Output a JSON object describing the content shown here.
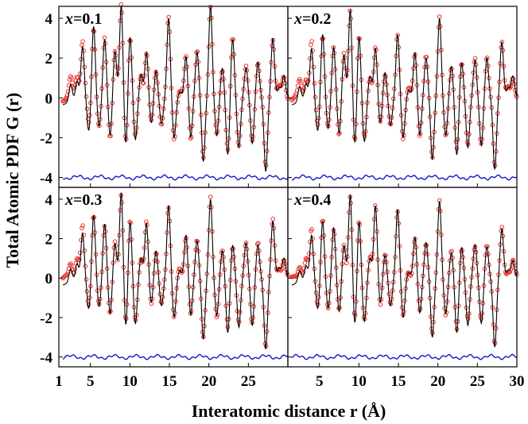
{
  "chart_data": {
    "type": "line",
    "xlabel": "Interatomic distance r (Å)",
    "ylabel": "Total Atomic PDF G (r)",
    "xlim": [
      1,
      30
    ],
    "ylim": [
      -4.5,
      4.6
    ],
    "x_ticks_left": [
      "1",
      "5",
      "10",
      "15",
      "20",
      "25"
    ],
    "x_ticks_right": [
      "5",
      "10",
      "15",
      "20",
      "25",
      "30"
    ],
    "y_ticks": [
      "4",
      "2",
      "0",
      "-2",
      "-4"
    ],
    "grid": false,
    "colors": {
      "observed": "#e8342c",
      "calculated": "#000000",
      "difference": "#1414d2"
    },
    "series_legend": [],
    "panels": [
      {
        "prefix": "x",
        "value": "=0.1",
        "peaks": [
          [
            2.5,
            0.9
          ],
          [
            3.3,
            1.0
          ],
          [
            4.0,
            2.7
          ],
          [
            4.8,
            -1.6
          ],
          [
            5.4,
            3.7
          ],
          [
            6.1,
            -1.4
          ],
          [
            6.8,
            3.0
          ],
          [
            7.5,
            -1.9
          ],
          [
            8.1,
            2.4
          ],
          [
            8.9,
            4.7
          ],
          [
            9.5,
            -2.5
          ],
          [
            10.0,
            3.2
          ],
          [
            10.7,
            -2.1
          ],
          [
            11.4,
            1.2
          ],
          [
            12.1,
            2.3
          ],
          [
            12.7,
            -1.3
          ],
          [
            13.3,
            1.4
          ],
          [
            14.0,
            -1.3
          ],
          [
            14.9,
            4.0
          ],
          [
            15.6,
            -2.0
          ],
          [
            16.3,
            0.3
          ],
          [
            17.1,
            2.1
          ],
          [
            17.7,
            -2.0
          ],
          [
            18.5,
            2.3
          ],
          [
            19.3,
            -3.2
          ],
          [
            20.2,
            4.6
          ],
          [
            21.0,
            -1.9
          ],
          [
            21.7,
            1.5
          ],
          [
            22.4,
            -2.9
          ],
          [
            23.0,
            3.0
          ],
          [
            23.8,
            -2.5
          ],
          [
            24.7,
            1.5
          ],
          [
            25.5,
            -2.3
          ],
          [
            26.2,
            1.8
          ],
          [
            27.2,
            -3.7
          ],
          [
            28.1,
            3.0
          ],
          [
            28.9,
            0.5
          ],
          [
            29.5,
            1.1
          ]
        ]
      },
      {
        "prefix": "x",
        "value": "=0.2",
        "peaks": [
          [
            2.5,
            0.8
          ],
          [
            3.3,
            0.9
          ],
          [
            4.0,
            2.6
          ],
          [
            4.8,
            -1.6
          ],
          [
            5.4,
            3.3
          ],
          [
            6.1,
            -1.5
          ],
          [
            6.8,
            2.6
          ],
          [
            7.5,
            -1.8
          ],
          [
            8.1,
            2.2
          ],
          [
            8.9,
            4.5
          ],
          [
            9.5,
            -2.5
          ],
          [
            10.0,
            3.2
          ],
          [
            10.7,
            -2.2
          ],
          [
            11.4,
            1.1
          ],
          [
            12.1,
            2.5
          ],
          [
            12.7,
            -1.3
          ],
          [
            13.3,
            1.3
          ],
          [
            14.0,
            -1.4
          ],
          [
            14.9,
            3.2
          ],
          [
            15.6,
            -2.0
          ],
          [
            16.3,
            0.4
          ],
          [
            17.1,
            2.3
          ],
          [
            17.7,
            -1.9
          ],
          [
            18.5,
            2.0
          ],
          [
            19.3,
            -3.1
          ],
          [
            20.2,
            4.0
          ],
          [
            21.0,
            -1.9
          ],
          [
            21.7,
            1.6
          ],
          [
            22.4,
            -2.9
          ],
          [
            23.0,
            1.8
          ],
          [
            23.8,
            -2.5
          ],
          [
            24.7,
            1.9
          ],
          [
            25.5,
            -2.4
          ],
          [
            26.2,
            2.0
          ],
          [
            27.2,
            -3.6
          ],
          [
            28.1,
            2.8
          ],
          [
            28.9,
            0.5
          ],
          [
            29.5,
            1.1
          ]
        ]
      },
      {
        "prefix": "x",
        "value": "=0.3",
        "peaks": [
          [
            2.5,
            0.7
          ],
          [
            3.3,
            0.9
          ],
          [
            4.0,
            2.4
          ],
          [
            4.8,
            -1.5
          ],
          [
            5.4,
            3.3
          ],
          [
            6.1,
            -1.4
          ],
          [
            6.8,
            2.8
          ],
          [
            7.5,
            -1.8
          ],
          [
            8.1,
            1.8
          ],
          [
            8.9,
            4.4
          ],
          [
            9.5,
            -2.6
          ],
          [
            10.0,
            3.0
          ],
          [
            10.7,
            -2.3
          ],
          [
            11.4,
            1.0
          ],
          [
            12.1,
            2.8
          ],
          [
            12.7,
            -1.3
          ],
          [
            13.3,
            1.4
          ],
          [
            14.0,
            -1.4
          ],
          [
            14.9,
            3.7
          ],
          [
            15.6,
            -2.0
          ],
          [
            16.3,
            0.4
          ],
          [
            17.1,
            2.2
          ],
          [
            17.7,
            -1.9
          ],
          [
            18.5,
            1.9
          ],
          [
            19.3,
            -3.1
          ],
          [
            20.2,
            4.0
          ],
          [
            21.0,
            -1.9
          ],
          [
            21.7,
            1.4
          ],
          [
            22.4,
            -2.8
          ],
          [
            23.0,
            1.7
          ],
          [
            23.8,
            -2.5
          ],
          [
            24.7,
            1.8
          ],
          [
            25.5,
            -2.4
          ],
          [
            26.2,
            1.7
          ],
          [
            27.2,
            -3.6
          ],
          [
            28.1,
            2.9
          ],
          [
            28.9,
            0.5
          ],
          [
            29.5,
            1.0
          ]
        ]
      },
      {
        "prefix": "x",
        "value": "=0.4",
        "peaks": [
          [
            2.5,
            0.6
          ],
          [
            3.3,
            0.8
          ],
          [
            4.0,
            2.3
          ],
          [
            4.8,
            -1.5
          ],
          [
            5.4,
            3.0
          ],
          [
            6.1,
            -1.5
          ],
          [
            6.8,
            2.6
          ],
          [
            7.5,
            -1.7
          ],
          [
            8.1,
            1.7
          ],
          [
            8.9,
            4.3
          ],
          [
            9.5,
            -2.5
          ],
          [
            10.0,
            3.0
          ],
          [
            10.7,
            -2.2
          ],
          [
            11.4,
            1.0
          ],
          [
            12.1,
            3.7
          ],
          [
            12.7,
            -1.3
          ],
          [
            13.3,
            1.2
          ],
          [
            14.0,
            -1.4
          ],
          [
            14.9,
            3.5
          ],
          [
            15.6,
            -2.0
          ],
          [
            16.3,
            0.3
          ],
          [
            17.1,
            2.1
          ],
          [
            17.7,
            -1.8
          ],
          [
            18.5,
            1.8
          ],
          [
            19.3,
            -3.0
          ],
          [
            20.2,
            3.9
          ],
          [
            21.0,
            -1.8
          ],
          [
            21.7,
            1.3
          ],
          [
            22.4,
            -2.8
          ],
          [
            23.0,
            1.6
          ],
          [
            23.8,
            -2.4
          ],
          [
            24.7,
            1.7
          ],
          [
            25.5,
            -2.3
          ],
          [
            26.2,
            1.6
          ],
          [
            27.2,
            -3.5
          ],
          [
            28.1,
            2.5
          ],
          [
            28.9,
            0.4
          ],
          [
            29.5,
            0.9
          ]
        ]
      }
    ],
    "difference_offset": -4.0
  }
}
